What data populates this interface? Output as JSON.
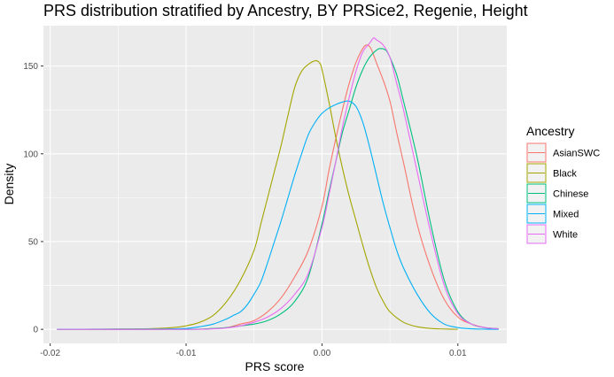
{
  "chart_data": {
    "type": "line",
    "title": "PRS distribution stratified by Ancestry, BY PRSice2, Regenie, Height",
    "xlabel": "PRS score",
    "ylabel": "Density",
    "xlim": [
      -0.0205,
      0.0136
    ],
    "ylim": [
      -8,
      173
    ],
    "xticks": [
      -0.02,
      -0.01,
      0.0,
      0.01
    ],
    "xtick_labels": [
      "-0.02",
      "-0.01",
      "0.00",
      "0.01"
    ],
    "yticks": [
      0,
      50,
      100,
      150
    ],
    "ytick_labels": [
      "0",
      "50",
      "100",
      "150"
    ],
    "grid": true,
    "legend": {
      "title": "Ancestry",
      "position": "right"
    },
    "series": [
      {
        "name": "AsianSWC",
        "color": "#F8766D",
        "points": [
          [
            -0.0195,
            0
          ],
          [
            -0.01,
            0
          ],
          [
            -0.008,
            0.5
          ],
          [
            -0.007,
            1
          ],
          [
            -0.006,
            3
          ],
          [
            -0.005,
            5
          ],
          [
            -0.004,
            10
          ],
          [
            -0.003,
            18
          ],
          [
            -0.002,
            30
          ],
          [
            -0.001,
            45
          ],
          [
            0.0,
            70
          ],
          [
            0.0005,
            90
          ],
          [
            0.001,
            108
          ],
          [
            0.0015,
            125
          ],
          [
            0.002,
            140
          ],
          [
            0.0025,
            152
          ],
          [
            0.003,
            160
          ],
          [
            0.0033,
            162
          ],
          [
            0.0036,
            160
          ],
          [
            0.004,
            152
          ],
          [
            0.0045,
            142
          ],
          [
            0.005,
            130
          ],
          [
            0.0055,
            112
          ],
          [
            0.006,
            95
          ],
          [
            0.007,
            60
          ],
          [
            0.008,
            35
          ],
          [
            0.009,
            17
          ],
          [
            0.01,
            7
          ],
          [
            0.011,
            3
          ],
          [
            0.012,
            1
          ],
          [
            0.013,
            0.3
          ]
        ]
      },
      {
        "name": "Black",
        "color": "#A3A500",
        "points": [
          [
            -0.0195,
            0
          ],
          [
            -0.013,
            0.3
          ],
          [
            -0.011,
            1
          ],
          [
            -0.01,
            2
          ],
          [
            -0.009,
            4
          ],
          [
            -0.008,
            8
          ],
          [
            -0.007,
            16
          ],
          [
            -0.006,
            28
          ],
          [
            -0.005,
            45
          ],
          [
            -0.0045,
            60
          ],
          [
            -0.004,
            75
          ],
          [
            -0.0035,
            90
          ],
          [
            -0.003,
            105
          ],
          [
            -0.0025,
            122
          ],
          [
            -0.002,
            138
          ],
          [
            -0.0015,
            147
          ],
          [
            -0.001,
            151
          ],
          [
            -0.0005,
            153
          ],
          [
            -0.0002,
            152
          ],
          [
            0.0,
            148
          ],
          [
            0.0005,
            130
          ],
          [
            0.001,
            110
          ],
          [
            0.0015,
            92
          ],
          [
            0.002,
            76
          ],
          [
            0.0025,
            62
          ],
          [
            0.003,
            48
          ],
          [
            0.0035,
            35
          ],
          [
            0.004,
            24
          ],
          [
            0.0045,
            16
          ],
          [
            0.005,
            10
          ],
          [
            0.006,
            4
          ],
          [
            0.007,
            1.5
          ],
          [
            0.008,
            0.5
          ],
          [
            0.009,
            0.2
          ],
          [
            0.01,
            0
          ]
        ]
      },
      {
        "name": "Chinese",
        "color": "#00BF7D",
        "points": [
          [
            -0.0195,
            0
          ],
          [
            -0.01,
            0
          ],
          [
            -0.008,
            0.5
          ],
          [
            -0.007,
            1
          ],
          [
            -0.006,
            2
          ],
          [
            -0.005,
            3
          ],
          [
            -0.004,
            5
          ],
          [
            -0.003,
            9
          ],
          [
            -0.002,
            16
          ],
          [
            -0.001,
            30
          ],
          [
            0.0,
            60
          ],
          [
            0.0005,
            78
          ],
          [
            0.001,
            95
          ],
          [
            0.0015,
            112
          ],
          [
            0.002,
            125
          ],
          [
            0.0025,
            138
          ],
          [
            0.003,
            148
          ],
          [
            0.0035,
            155
          ],
          [
            0.004,
            159
          ],
          [
            0.0043,
            160
          ],
          [
            0.0047,
            159
          ],
          [
            0.005,
            155
          ],
          [
            0.0055,
            145
          ],
          [
            0.006,
            130
          ],
          [
            0.007,
            98
          ],
          [
            0.008,
            60
          ],
          [
            0.009,
            28
          ],
          [
            0.01,
            10
          ],
          [
            0.011,
            3
          ],
          [
            0.012,
            1
          ],
          [
            0.013,
            0.3
          ]
        ]
      },
      {
        "name": "Mixed",
        "color": "#00B0F6",
        "points": [
          [
            -0.0195,
            0
          ],
          [
            -0.012,
            0.2
          ],
          [
            -0.01,
            0.5
          ],
          [
            -0.009,
            1.5
          ],
          [
            -0.008,
            3
          ],
          [
            -0.007,
            6
          ],
          [
            -0.0065,
            8
          ],
          [
            -0.006,
            10
          ],
          [
            -0.0055,
            14
          ],
          [
            -0.005,
            20
          ],
          [
            -0.0045,
            27
          ],
          [
            -0.004,
            38
          ],
          [
            -0.0035,
            50
          ],
          [
            -0.003,
            62
          ],
          [
            -0.0025,
            75
          ],
          [
            -0.002,
            88
          ],
          [
            -0.0015,
            100
          ],
          [
            -0.001,
            111
          ],
          [
            -0.0005,
            118
          ],
          [
            0.0,
            123
          ],
          [
            0.0005,
            126
          ],
          [
            0.001,
            128
          ],
          [
            0.0015,
            129.5
          ],
          [
            0.002,
            130
          ],
          [
            0.0025,
            127
          ],
          [
            0.003,
            118
          ],
          [
            0.0035,
            104
          ],
          [
            0.004,
            88
          ],
          [
            0.0045,
            72
          ],
          [
            0.005,
            58
          ],
          [
            0.0055,
            45
          ],
          [
            0.006,
            35
          ],
          [
            0.007,
            20
          ],
          [
            0.008,
            9
          ],
          [
            0.009,
            3
          ],
          [
            0.01,
            1
          ],
          [
            0.011,
            0.3
          ],
          [
            0.012,
            0.1
          ],
          [
            0.013,
            0
          ]
        ]
      },
      {
        "name": "White",
        "color": "#E76BF3",
        "points": [
          [
            -0.0195,
            0
          ],
          [
            -0.01,
            0
          ],
          [
            -0.008,
            0.3
          ],
          [
            -0.007,
            0.8
          ],
          [
            -0.006,
            2
          ],
          [
            -0.005,
            4
          ],
          [
            -0.004,
            7
          ],
          [
            -0.003,
            12
          ],
          [
            -0.002,
            20
          ],
          [
            -0.001,
            32
          ],
          [
            0.0,
            58
          ],
          [
            0.0005,
            76
          ],
          [
            0.001,
            95
          ],
          [
            0.0015,
            115
          ],
          [
            0.002,
            132
          ],
          [
            0.0025,
            147
          ],
          [
            0.003,
            158
          ],
          [
            0.0035,
            163
          ],
          [
            0.0038,
            166
          ],
          [
            0.004,
            165
          ],
          [
            0.0045,
            162
          ],
          [
            0.005,
            155
          ],
          [
            0.0055,
            140
          ],
          [
            0.006,
            125
          ],
          [
            0.007,
            90
          ],
          [
            0.008,
            55
          ],
          [
            0.009,
            25
          ],
          [
            0.01,
            9
          ],
          [
            0.011,
            3
          ],
          [
            0.012,
            1
          ],
          [
            0.013,
            0.3
          ]
        ]
      }
    ]
  }
}
